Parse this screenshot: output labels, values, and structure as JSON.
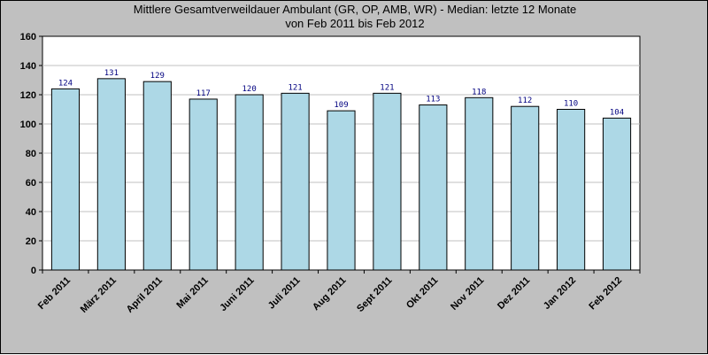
{
  "chart_data": {
    "type": "bar",
    "title": "Mittlere Gesamtverweildauer Ambulant (GR, OP, AMB, WR) - Median: letzte 12 Monate",
    "subtitle": "von Feb 2011 bis Feb 2012",
    "categories": [
      "Feb 2011",
      "März 2011",
      "April 2011",
      "Mai 2011",
      "Juni 2011",
      "Juli 2011",
      "Aug 2011",
      "Sept 2011",
      "Okt 2011",
      "Nov 2011",
      "Dez 2011",
      "Jan 2012",
      "Feb 2012"
    ],
    "values": [
      124,
      131,
      129,
      117,
      120,
      121,
      109,
      121,
      113,
      118,
      112,
      110,
      104
    ],
    "data_labels": [
      "124",
      "131",
      "129",
      "117",
      "120",
      "121",
      "109",
      "121",
      "113",
      "118",
      "112",
      "110",
      "104"
    ],
    "yticks": [
      "0",
      "20",
      "40",
      "60",
      "80",
      "100",
      "120",
      "140",
      "160"
    ],
    "ylim": [
      0,
      160
    ],
    "xlabel": "",
    "ylabel": "",
    "grid": true,
    "legend": "none",
    "colors": {
      "bar_fill": "#add8e6",
      "bar_stroke": "#000000",
      "plot_bg": "#ffffff",
      "outer_bg": "#c0c0c0",
      "grid": "#c0c0c0",
      "data_label": "#000080"
    }
  }
}
